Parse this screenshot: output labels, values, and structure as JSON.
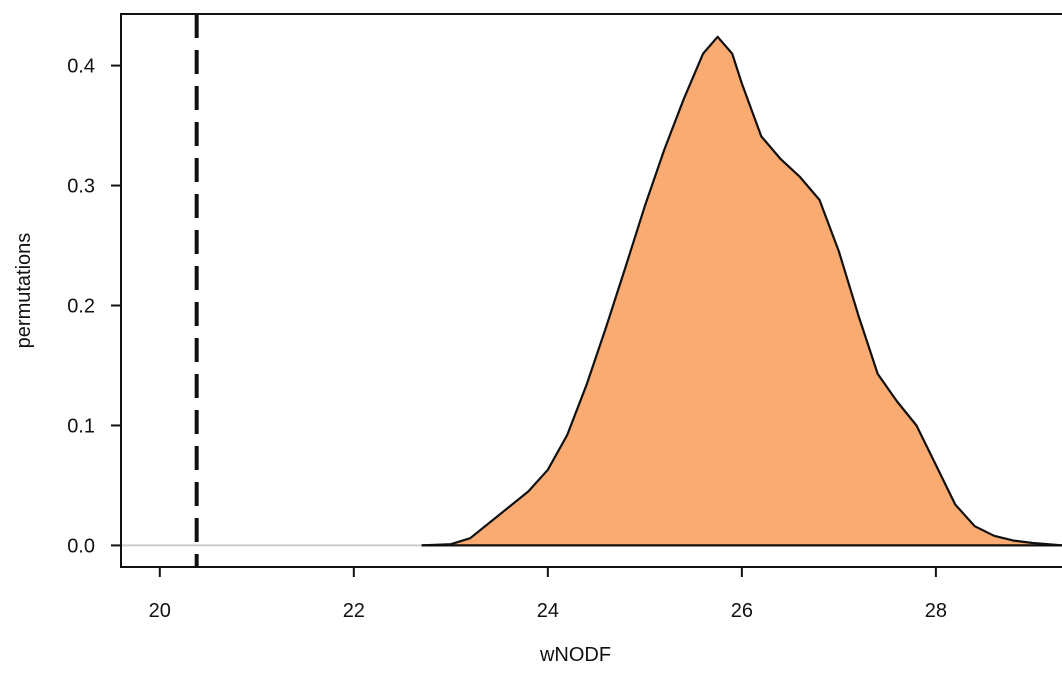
{
  "chart_data": {
    "type": "area",
    "title": "",
    "xlabel": "wNODF",
    "ylabel": "permutations",
    "xlim": [
      19.6,
      29.3
    ],
    "ylim": [
      -0.018,
      0.443
    ],
    "xticks": [
      20,
      22,
      24,
      26,
      28
    ],
    "yticks": [
      0.0,
      0.1,
      0.2,
      0.3,
      0.4
    ],
    "xtick_labels": [
      "20",
      "22",
      "24",
      "26",
      "28"
    ],
    "ytick_labels": [
      "0.0",
      "0.1",
      "0.2",
      "0.3",
      "0.4"
    ],
    "grid": false,
    "legend": "none",
    "fill_color": "#F9AB72",
    "line_color": "#111111",
    "baseline_color": "#cccccc",
    "observed_value": 20.38,
    "observed_line_style": "dashed",
    "series": [
      {
        "x": [
          22.7,
          23.0,
          23.2,
          23.4,
          23.6,
          23.8,
          24.0,
          24.2,
          24.4,
          24.6,
          24.8,
          25.0,
          25.2,
          25.4,
          25.6,
          25.75,
          25.9,
          26.0,
          26.2,
          26.4,
          26.6,
          26.8,
          27.0,
          27.2,
          27.4,
          27.6,
          27.8,
          28.0,
          28.2,
          28.4,
          28.6,
          28.8,
          29.0,
          29.3
        ],
        "y": [
          0.0,
          0.001,
          0.006,
          0.019,
          0.032,
          0.045,
          0.063,
          0.092,
          0.134,
          0.182,
          0.232,
          0.283,
          0.33,
          0.372,
          0.41,
          0.424,
          0.41,
          0.385,
          0.341,
          0.322,
          0.307,
          0.288,
          0.245,
          0.192,
          0.143,
          0.12,
          0.1,
          0.067,
          0.034,
          0.016,
          0.008,
          0.004,
          0.002,
          0.0
        ]
      }
    ]
  }
}
